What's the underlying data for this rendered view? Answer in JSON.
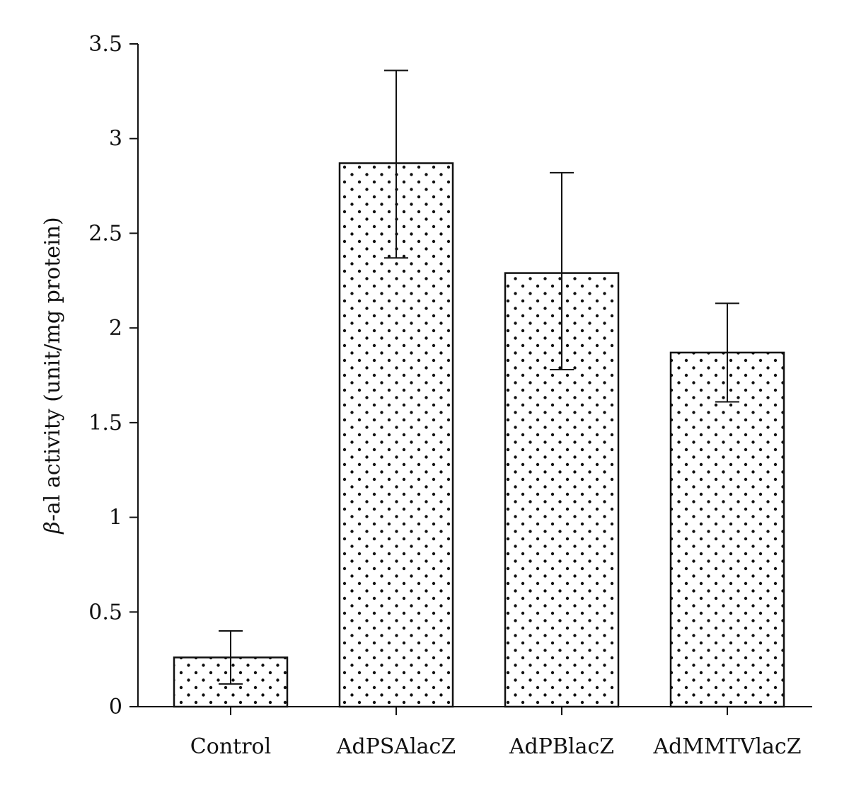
{
  "chart_data": {
    "type": "bar",
    "title": "",
    "xlabel": "",
    "ylabel_symbol": "β",
    "ylabel_rest": "-al activity (unit/mg protein)",
    "categories": [
      "Control",
      "AdPSAlacZ",
      "AdPBlacZ",
      "AdMMTVlacZ"
    ],
    "values": [
      0.26,
      2.87,
      2.29,
      1.87
    ],
    "error_upper": [
      0.4,
      3.36,
      2.82,
      2.13
    ],
    "error_lower": [
      0.12,
      2.37,
      1.78,
      1.61
    ],
    "ylim": [
      0,
      3.5
    ],
    "yticks": [
      "0",
      "0.5",
      "1",
      "1.5",
      "2",
      "2.5",
      "3",
      "3.5"
    ],
    "grid": false,
    "bar_fill": "dotted pattern",
    "colors": {
      "bar_outline": "#111111",
      "dots": "#111111",
      "background": "#ffffff"
    }
  }
}
